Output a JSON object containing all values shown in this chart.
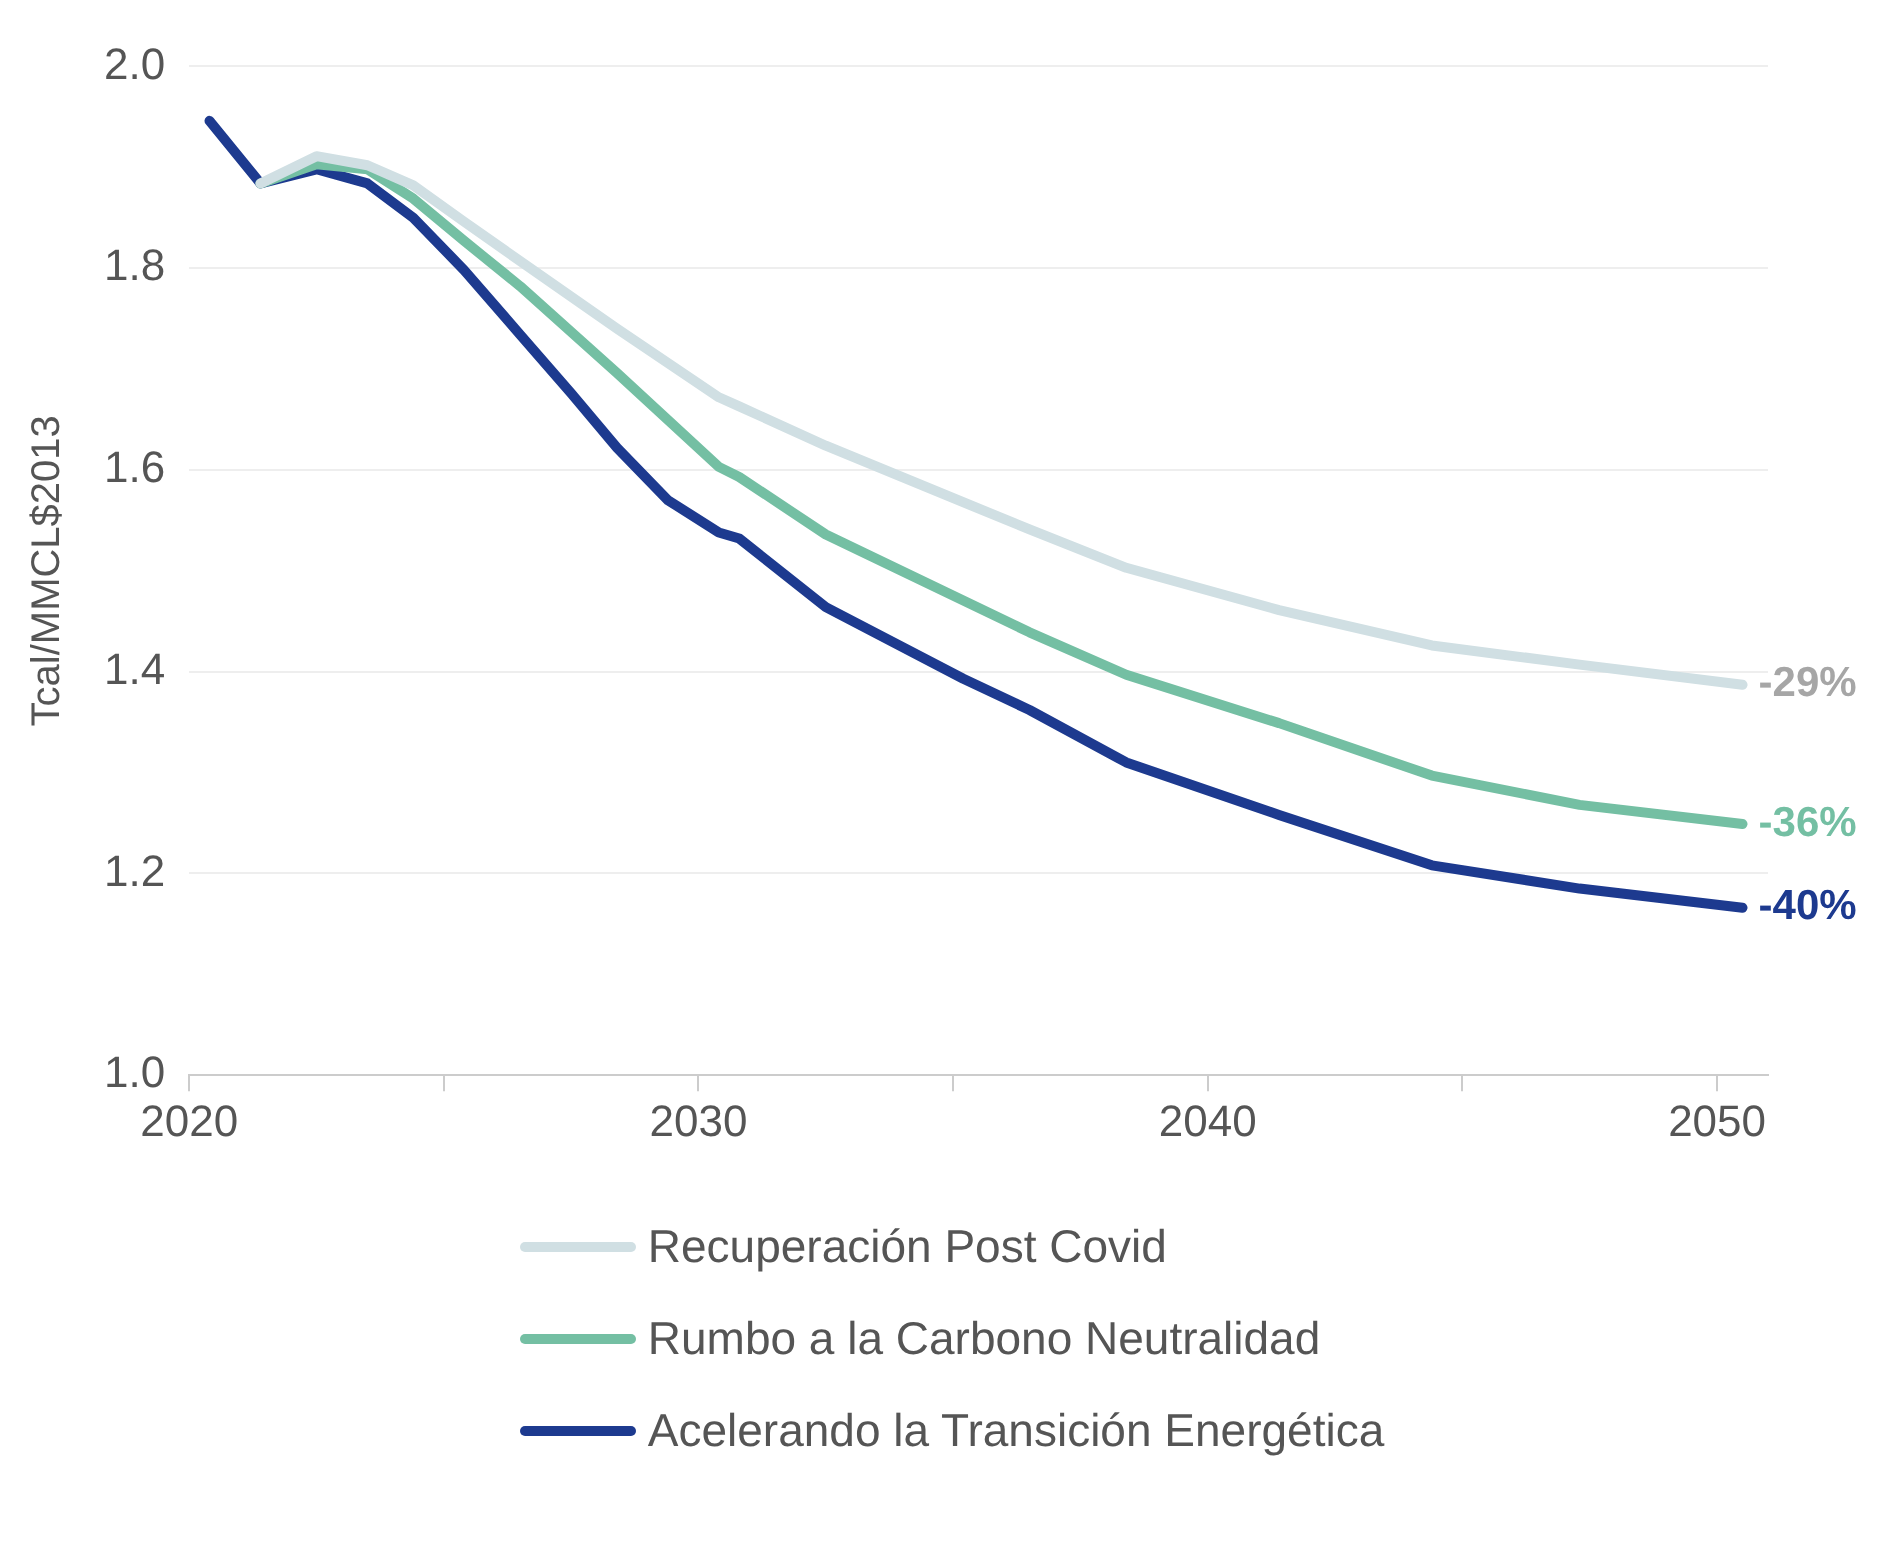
{
  "chart_data": {
    "type": "line",
    "ylabel": "Tcal/MMCL$2013",
    "xlim": [
      2020,
      2051
    ],
    "xticks": [
      2020,
      {
        "value": 2025,
        "label": null
      },
      2030,
      {
        "value": 2035,
        "label": null
      },
      2040,
      {
        "value": 2045,
        "label": null
      },
      2050
    ],
    "ylim": [
      1,
      2
    ],
    "yticks": [
      {
        "value": 1,
        "label": "1.0"
      },
      1.2,
      1.4,
      1.6,
      1.8,
      {
        "value": 2,
        "label": "2.0"
      }
    ],
    "grid": "y",
    "legend": "bottom",
    "marker": "none",
    "line_style": "solid",
    "series": [
      {
        "name": "Recuperación Post Covid",
        "color": "#d0dfe3",
        "x": [
          2021.4,
          2022.5,
          2023.5,
          2024.4,
          2025.4,
          2026.5,
          2028.4,
          2030.4,
          2030.8,
          2032.5,
          2036.5,
          2038.4,
          2041.4,
          2044.4,
          2047.3,
          2050.5
        ],
        "values": [
          1.884,
          1.911,
          1.902,
          1.882,
          1.846,
          1.807,
          1.74,
          1.672,
          1.663,
          1.624,
          1.541,
          1.503,
          1.461,
          1.426,
          1.407,
          1.387
        ]
      },
      {
        "name": "Rumbo a la Carbono Neutralidad",
        "color": "#74bfa3",
        "x": [
          2021.4,
          2022.5,
          2023.5,
          2024.4,
          2025.4,
          2026.5,
          2028.4,
          2030.4,
          2030.8,
          2032.5,
          2036.5,
          2038.4,
          2041.4,
          2044.4,
          2047.3,
          2050.5
        ],
        "values": [
          1.884,
          1.903,
          1.898,
          1.869,
          1.827,
          1.782,
          1.696,
          1.603,
          1.593,
          1.536,
          1.439,
          1.397,
          1.349,
          1.297,
          1.268,
          1.249
        ]
      },
      {
        "name": "Acelerando la Transición Energética",
        "color": "#1d3a8f",
        "x": [
          2020.4,
          2021.4,
          2022.5,
          2023.5,
          2024.4,
          2025.4,
          2026.5,
          2027.5,
          2028.4,
          2029.4,
          2030.4,
          2030.8,
          2032.5,
          2035.2,
          2036.5,
          2038.4,
          2041.4,
          2044.4,
          2047.3,
          2050.5
        ],
        "values": [
          1.946,
          1.884,
          1.898,
          1.884,
          1.85,
          1.798,
          1.734,
          1.676,
          1.622,
          1.57,
          1.538,
          1.532,
          1.464,
          1.393,
          1.362,
          1.31,
          1.258,
          1.208,
          1.185,
          1.166
        ]
      }
    ],
    "annotations": [
      "-29%",
      "-36%",
      "-40%"
    ]
  }
}
